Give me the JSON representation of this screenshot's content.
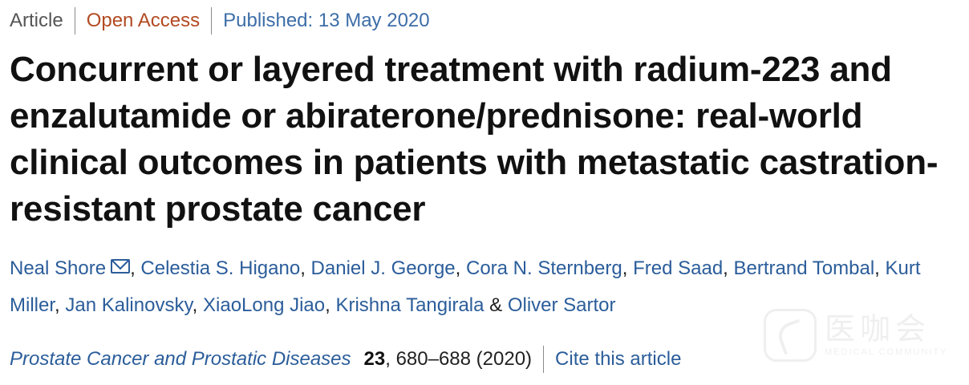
{
  "meta": {
    "article_type": "Article",
    "access": "Open Access",
    "published": "Published: 13 May 2020"
  },
  "article": {
    "title": "Concurrent or layered treatment with radium-223 and enzalutamide or abiraterone/prednisone: real-world clinical outcomes in patients with metastatic castration-resistant prostate cancer"
  },
  "authors": [
    "Neal Shore",
    "Celestia S. Higano",
    "Daniel J. George",
    "Cora N. Sternberg",
    "Fred Saad",
    "Bertrand Tombal",
    "Kurt Miller",
    "Jan Kalinovsky",
    "XiaoLong Jiao",
    "Krishna Tangirala",
    "Oliver Sartor"
  ],
  "authors_separators": {
    "comma": ", ",
    "last": " & "
  },
  "corresponding_icon": "envelope-icon",
  "citation": {
    "journal": "Prostate Cancer and Prostatic Diseases",
    "volume": "23",
    "pages_year": ", 680–688 (2020)",
    "cite_label": "Cite this article"
  },
  "watermark": {
    "text": "医咖会",
    "subtext": "MEDICAL COMMUNITY",
    "icon": "watermark-logo-icon"
  },
  "colors": {
    "link": "#2b5d9a",
    "access": "#b24a22",
    "published": "#3d6ea8",
    "text": "#222222"
  }
}
